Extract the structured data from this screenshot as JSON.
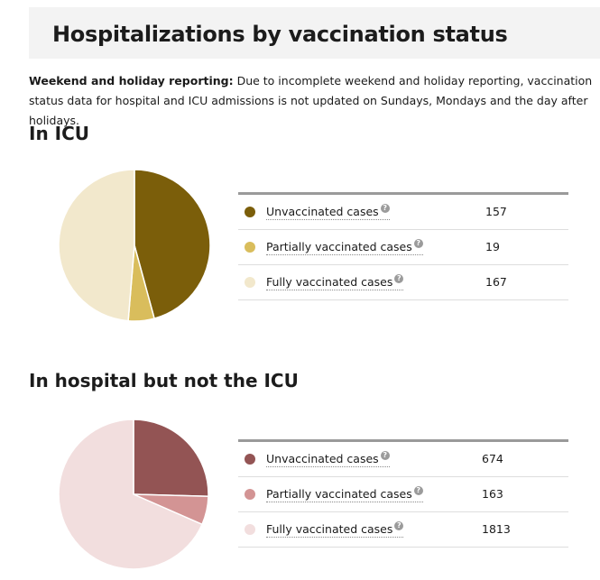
{
  "title": "Hospitalizations by vaccination status",
  "notice": {
    "bold": "Weekend and holiday reporting:",
    "text": " Due to incomplete weekend and holiday reporting, vaccination status data for hospital and ICU admissions is not updated on Sundays, Mondays and the day after holidays."
  },
  "help_glyph": "?",
  "icu": {
    "heading": "In ICU",
    "rows": [
      {
        "label": "Unvaccinated cases",
        "value": "157"
      },
      {
        "label": "Partially vaccinated cases",
        "value": "19"
      },
      {
        "label": "Fully vaccinated cases",
        "value": "167"
      }
    ]
  },
  "hospital": {
    "heading": "In hospital but not the ICU",
    "rows": [
      {
        "label": "Unvaccinated cases",
        "value": "674"
      },
      {
        "label": "Partially vaccinated cases",
        "value": "163"
      },
      {
        "label": "Fully vaccinated cases",
        "value": "1813"
      }
    ]
  },
  "chart_data": [
    {
      "type": "pie",
      "title": "In ICU",
      "categories": [
        "Unvaccinated cases",
        "Partially vaccinated cases",
        "Fully vaccinated cases"
      ],
      "values": [
        157,
        19,
        167
      ],
      "colors": [
        "#7b5e0a",
        "#d9bd5c",
        "#f2e8cc"
      ]
    },
    {
      "type": "pie",
      "title": "In hospital but not the ICU",
      "categories": [
        "Unvaccinated cases",
        "Partially vaccinated cases",
        "Fully vaccinated cases"
      ],
      "values": [
        674,
        163,
        1813
      ],
      "colors": [
        "#935454",
        "#d39494",
        "#f2dede"
      ]
    }
  ]
}
